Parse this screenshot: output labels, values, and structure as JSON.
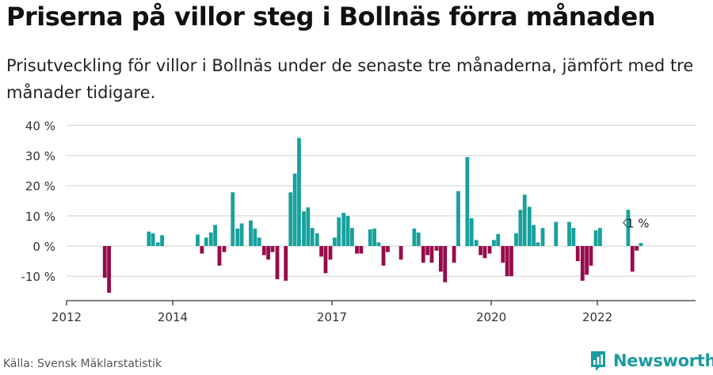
{
  "header": {
    "title": "Priserna på villor steg i Bollnäs förra månaden",
    "subtitle": "Prisutveckling för villor i Bollnäs under de senaste tre månaderna, jämfört med tre månader tidigare."
  },
  "footer": {
    "source": "Källa: Svensk Mäklarstatistik",
    "brand": "Newsworthy"
  },
  "colors": {
    "positive": "#18a19c",
    "negative": "#980b4b",
    "brand": "#1b9aa0",
    "grid": "#d9d9d9",
    "axis": "#333333"
  },
  "chart_data": {
    "type": "bar",
    "ylabel": "",
    "y_ticks": [
      40,
      30,
      20,
      10,
      0,
      -10
    ],
    "y_tick_labels": [
      "40 %",
      "30 %",
      "20 %",
      "10 %",
      "0 %",
      "-10 %"
    ],
    "ylim": [
      -18,
      42
    ],
    "xlim": [
      2012.0,
      2023.85
    ],
    "x_tick_labels": [
      "2012",
      "2014",
      "2017",
      "2020",
      "2022"
    ],
    "x_tick_positions": [
      2012.0,
      2014.0,
      2017.0,
      2020.0,
      2022.0
    ],
    "grid": true,
    "annotation": {
      "text": "1 %",
      "x": 2022.58,
      "y": 8
    },
    "points": [
      {
        "x": 2012.72,
        "y": -10.5
      },
      {
        "x": 2012.8,
        "y": -15.5
      },
      {
        "x": 2013.55,
        "y": 4.8
      },
      {
        "x": 2013.63,
        "y": 4.2
      },
      {
        "x": 2013.72,
        "y": 1.2
      },
      {
        "x": 2013.8,
        "y": 3.6
      },
      {
        "x": 2014.47,
        "y": 3.8
      },
      {
        "x": 2014.55,
        "y": -2.5
      },
      {
        "x": 2014.63,
        "y": 2.8
      },
      {
        "x": 2014.72,
        "y": 4.5
      },
      {
        "x": 2014.8,
        "y": 7.0
      },
      {
        "x": 2014.88,
        "y": -6.5
      },
      {
        "x": 2014.97,
        "y": -2.0
      },
      {
        "x": 2015.13,
        "y": 17.8
      },
      {
        "x": 2015.22,
        "y": 5.8
      },
      {
        "x": 2015.3,
        "y": 7.5
      },
      {
        "x": 2015.47,
        "y": 8.5
      },
      {
        "x": 2015.55,
        "y": 5.8
      },
      {
        "x": 2015.63,
        "y": 2.8
      },
      {
        "x": 2015.72,
        "y": -3.0
      },
      {
        "x": 2015.8,
        "y": -4.5
      },
      {
        "x": 2015.88,
        "y": -2.0
      },
      {
        "x": 2015.97,
        "y": -11.0
      },
      {
        "x": 2016.13,
        "y": -11.5
      },
      {
        "x": 2016.22,
        "y": 17.8
      },
      {
        "x": 2016.3,
        "y": 24.0
      },
      {
        "x": 2016.38,
        "y": 35.8
      },
      {
        "x": 2016.47,
        "y": 11.5
      },
      {
        "x": 2016.55,
        "y": 12.8
      },
      {
        "x": 2016.63,
        "y": 6.0
      },
      {
        "x": 2016.72,
        "y": 4.2
      },
      {
        "x": 2016.8,
        "y": -3.5
      },
      {
        "x": 2016.88,
        "y": -9.0
      },
      {
        "x": 2016.97,
        "y": -4.5
      },
      {
        "x": 2017.05,
        "y": 2.8
      },
      {
        "x": 2017.13,
        "y": 9.5
      },
      {
        "x": 2017.22,
        "y": 11.0
      },
      {
        "x": 2017.3,
        "y": 10.0
      },
      {
        "x": 2017.38,
        "y": 6.0
      },
      {
        "x": 2017.47,
        "y": -2.5
      },
      {
        "x": 2017.55,
        "y": -2.5
      },
      {
        "x": 2017.72,
        "y": 5.5
      },
      {
        "x": 2017.8,
        "y": 5.8
      },
      {
        "x": 2017.88,
        "y": 1.2
      },
      {
        "x": 2017.97,
        "y": -6.5
      },
      {
        "x": 2018.05,
        "y": -2.0
      },
      {
        "x": 2018.3,
        "y": -4.5
      },
      {
        "x": 2018.55,
        "y": 5.8
      },
      {
        "x": 2018.63,
        "y": 4.5
      },
      {
        "x": 2018.72,
        "y": -5.5
      },
      {
        "x": 2018.8,
        "y": -3.0
      },
      {
        "x": 2018.88,
        "y": -5.5
      },
      {
        "x": 2018.97,
        "y": -1.5
      },
      {
        "x": 2019.05,
        "y": -8.5
      },
      {
        "x": 2019.13,
        "y": -12.0
      },
      {
        "x": 2019.3,
        "y": -5.5
      },
      {
        "x": 2019.38,
        "y": 18.2
      },
      {
        "x": 2019.55,
        "y": 29.5
      },
      {
        "x": 2019.63,
        "y": 9.2
      },
      {
        "x": 2019.72,
        "y": 2.0
      },
      {
        "x": 2019.8,
        "y": -3.0
      },
      {
        "x": 2019.88,
        "y": -4.0
      },
      {
        "x": 2019.97,
        "y": -2.5
      },
      {
        "x": 2020.05,
        "y": 2.0
      },
      {
        "x": 2020.13,
        "y": 4.0
      },
      {
        "x": 2020.22,
        "y": -5.5
      },
      {
        "x": 2020.3,
        "y": -10.0
      },
      {
        "x": 2020.38,
        "y": -10.0
      },
      {
        "x": 2020.47,
        "y": 4.2
      },
      {
        "x": 2020.55,
        "y": 12.0
      },
      {
        "x": 2020.63,
        "y": 17.0
      },
      {
        "x": 2020.72,
        "y": 13.0
      },
      {
        "x": 2020.8,
        "y": 7.0
      },
      {
        "x": 2020.88,
        "y": 1.2
      },
      {
        "x": 2020.97,
        "y": 6.0
      },
      {
        "x": 2021.22,
        "y": 8.0
      },
      {
        "x": 2021.47,
        "y": 8.0
      },
      {
        "x": 2021.55,
        "y": 6.0
      },
      {
        "x": 2021.63,
        "y": -5.0
      },
      {
        "x": 2021.72,
        "y": -11.5
      },
      {
        "x": 2021.8,
        "y": -9.5
      },
      {
        "x": 2021.88,
        "y": -6.5
      },
      {
        "x": 2021.97,
        "y": 5.2
      },
      {
        "x": 2022.05,
        "y": 6.0
      },
      {
        "x": 2022.58,
        "y": 12.0
      },
      {
        "x": 2022.66,
        "y": -8.5
      },
      {
        "x": 2022.74,
        "y": -1.5
      },
      {
        "x": 2022.82,
        "y": 1.0
      }
    ]
  }
}
